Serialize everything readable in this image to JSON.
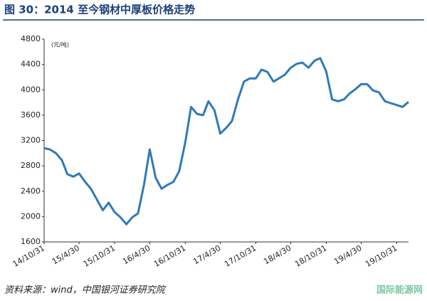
{
  "chart_data": {
    "type": "line",
    "title": "图 30：2014 至今钢材中厚板价格走势",
    "unit_label": "(元/吨)",
    "source": "资料来源：wind，中国银河证券研究院",
    "watermark": "国际能源网",
    "x": [
      "14/10/31",
      "14/11/30",
      "14/12/31",
      "15/1/31",
      "15/2/28",
      "15/3/31",
      "15/4/30",
      "15/5/31",
      "15/6/30",
      "15/7/31",
      "15/8/31",
      "15/9/30",
      "15/10/31",
      "15/11/30",
      "15/12/31",
      "16/1/31",
      "16/2/29",
      "16/3/31",
      "16/4/30",
      "16/5/31",
      "16/6/30",
      "16/7/31",
      "16/8/31",
      "16/9/30",
      "16/10/31",
      "16/11/30",
      "16/12/31",
      "17/1/31",
      "17/2/28",
      "17/3/31",
      "17/4/30",
      "17/5/31",
      "17/6/30",
      "17/7/31",
      "17/8/31",
      "17/9/30",
      "17/10/31",
      "17/11/30",
      "17/12/31",
      "18/1/31",
      "18/2/28",
      "18/3/31",
      "18/4/30",
      "18/5/31",
      "18/6/30",
      "18/7/31",
      "18/8/31",
      "18/9/30",
      "18/10/31",
      "18/11/30",
      "18/12/31",
      "19/1/31",
      "19/2/28",
      "19/3/31",
      "19/4/30",
      "19/5/31",
      "19/6/30",
      "19/7/31",
      "19/8/31",
      "19/9/30",
      "19/10/31",
      "19/11/30",
      "19/12/31"
    ],
    "series": [
      {
        "name": "中厚板价格",
        "color": "#2f7ab8",
        "values": [
          3080,
          3060,
          3000,
          2890,
          2670,
          2630,
          2680,
          2550,
          2440,
          2270,
          2100,
          2220,
          2070,
          1990,
          1880,
          1990,
          2050,
          2500,
          3060,
          2610,
          2440,
          2500,
          2550,
          2720,
          3170,
          3730,
          3620,
          3600,
          3820,
          3680,
          3310,
          3400,
          3510,
          3850,
          4130,
          4180,
          4180,
          4320,
          4280,
          4130,
          4180,
          4240,
          4350,
          4410,
          4430,
          4350,
          4460,
          4500,
          4290,
          3850,
          3820,
          3850,
          3940,
          4010,
          4090,
          4090,
          3990,
          3960,
          3820,
          3790,
          3760,
          3730,
          3810
        ]
      }
    ],
    "xlim": [
      "14/10/31",
      "19/12/31"
    ],
    "xticks": [
      "14/10/31",
      "15/4/30",
      "15/10/31",
      "16/4/30",
      "16/10/31",
      "17/4/30",
      "17/10/31",
      "18/4/30",
      "18/10/31",
      "19/4/30",
      "19/10/31"
    ],
    "ylim": [
      1600,
      4800
    ],
    "yticks": [
      1600,
      2000,
      2400,
      2800,
      3200,
      3600,
      4000,
      4400,
      4800
    ],
    "grid": false
  }
}
